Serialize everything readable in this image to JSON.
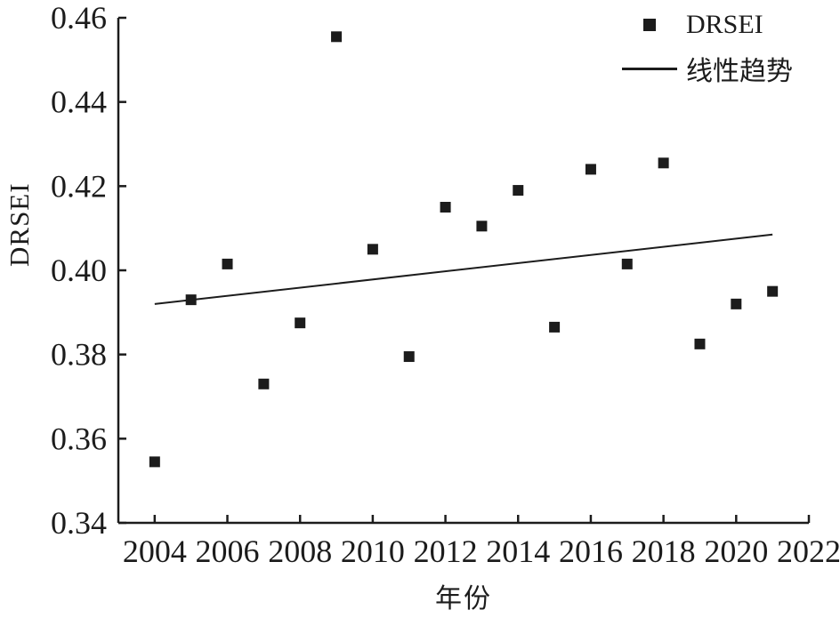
{
  "figure": {
    "background": "#ffffff",
    "ink_color": "#1c1c1c"
  },
  "chart_data": {
    "type": "scatter",
    "title": "",
    "xlabel": "年份",
    "ylabel": "DRSEI",
    "xlim": [
      2003,
      2022
    ],
    "ylim": [
      0.34,
      0.46
    ],
    "x_ticks": [
      2004,
      2006,
      2008,
      2010,
      2012,
      2014,
      2016,
      2018,
      2020,
      2022
    ],
    "y_ticks": [
      0.34,
      0.36,
      0.38,
      0.4,
      0.42,
      0.44,
      0.46
    ],
    "grid": false,
    "legend_position": "top-right",
    "series": [
      {
        "name": "DRSEI",
        "type": "scatter",
        "marker": "square",
        "color": "#1c1c1c",
        "x": [
          2004,
          2005,
          2006,
          2007,
          2008,
          2009,
          2010,
          2011,
          2012,
          2013,
          2014,
          2015,
          2016,
          2017,
          2018,
          2019,
          2020,
          2021
        ],
        "y": [
          0.3545,
          0.393,
          0.4015,
          0.373,
          0.3875,
          0.4555,
          0.405,
          0.3795,
          0.415,
          0.4105,
          0.419,
          0.3865,
          0.424,
          0.4015,
          0.4255,
          0.3825,
          0.392,
          0.395
        ]
      },
      {
        "name": "线性趋势",
        "type": "line",
        "color": "#1c1c1c",
        "x": [
          2004,
          2021
        ],
        "y": [
          0.392,
          0.4085
        ]
      }
    ]
  }
}
